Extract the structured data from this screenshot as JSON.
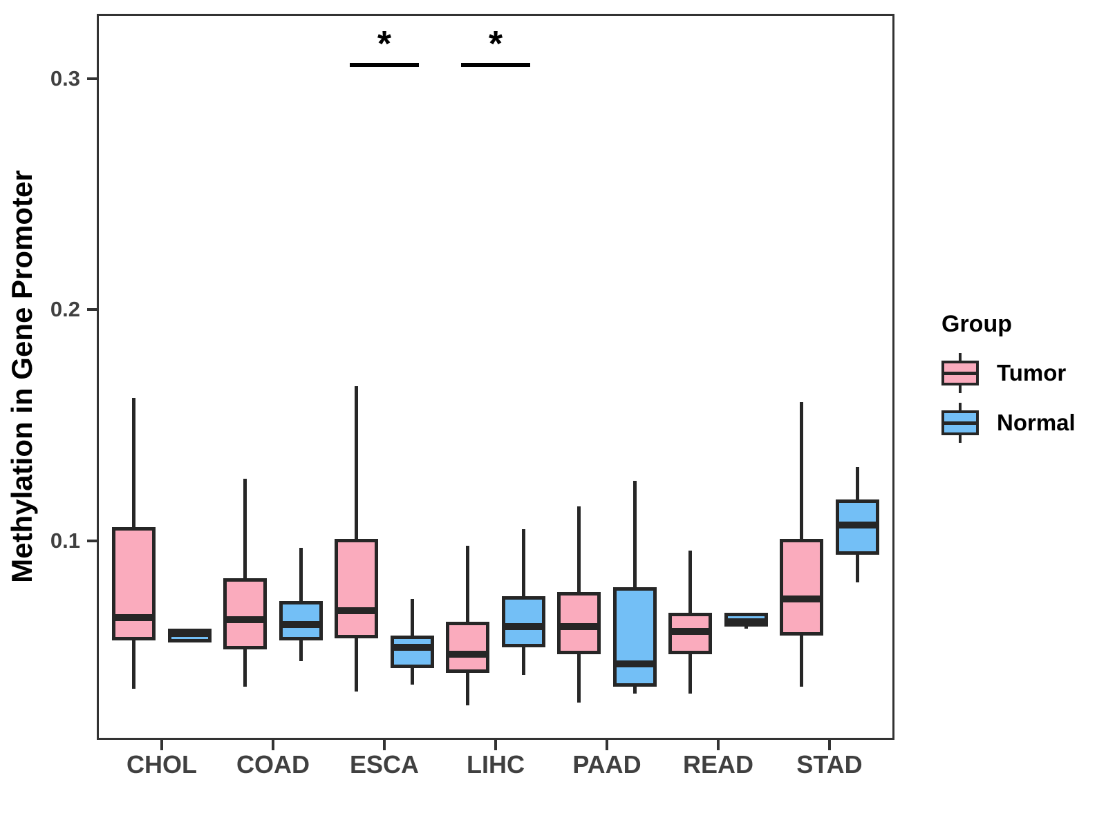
{
  "chart_data": {
    "type": "boxplot",
    "title": "",
    "xlabel": "",
    "ylabel": "Methylation in Gene Promoter",
    "categories": [
      "CHOL",
      "COAD",
      "ESCA",
      "LIHC",
      "PAAD",
      "READ",
      "STAD"
    ],
    "groups": [
      "Tumor",
      "Normal"
    ],
    "colors": {
      "Tumor": "#FAABBD",
      "Normal": "#73BFF6"
    },
    "ylim": [
      0.014,
      0.328
    ],
    "yticks": [
      0.1,
      0.2,
      0.3
    ],
    "grid": "off",
    "series": [
      {
        "category": "CHOL",
        "group": "Tumor",
        "min": 0.036,
        "q1": 0.057,
        "median": 0.067,
        "q3": 0.106,
        "max": 0.162
      },
      {
        "category": "CHOL",
        "group": "Normal",
        "min": 0.056,
        "q1": 0.056,
        "median": 0.06,
        "q3": 0.062,
        "max": 0.062
      },
      {
        "category": "COAD",
        "group": "Tumor",
        "min": 0.037,
        "q1": 0.053,
        "median": 0.066,
        "q3": 0.084,
        "max": 0.127
      },
      {
        "category": "COAD",
        "group": "Normal",
        "min": 0.048,
        "q1": 0.057,
        "median": 0.064,
        "q3": 0.074,
        "max": 0.097
      },
      {
        "category": "ESCA",
        "group": "Tumor",
        "min": 0.035,
        "q1": 0.058,
        "median": 0.07,
        "q3": 0.101,
        "max": 0.167
      },
      {
        "category": "ESCA",
        "group": "Normal",
        "min": 0.038,
        "q1": 0.045,
        "median": 0.054,
        "q3": 0.059,
        "max": 0.075
      },
      {
        "category": "LIHC",
        "group": "Tumor",
        "min": 0.029,
        "q1": 0.043,
        "median": 0.051,
        "q3": 0.065,
        "max": 0.098
      },
      {
        "category": "LIHC",
        "group": "Normal",
        "min": 0.042,
        "q1": 0.054,
        "median": 0.063,
        "q3": 0.076,
        "max": 0.105
      },
      {
        "category": "PAAD",
        "group": "Tumor",
        "min": 0.03,
        "q1": 0.051,
        "median": 0.063,
        "q3": 0.078,
        "max": 0.115
      },
      {
        "category": "PAAD",
        "group": "Normal",
        "min": 0.034,
        "q1": 0.037,
        "median": 0.047,
        "q3": 0.08,
        "max": 0.126
      },
      {
        "category": "READ",
        "group": "Tumor",
        "min": 0.034,
        "q1": 0.051,
        "median": 0.061,
        "q3": 0.069,
        "max": 0.096
      },
      {
        "category": "READ",
        "group": "Normal",
        "min": 0.062,
        "q1": 0.063,
        "median": 0.065,
        "q3": 0.069,
        "max": 0.069
      },
      {
        "category": "STAD",
        "group": "Tumor",
        "min": 0.037,
        "q1": 0.059,
        "median": 0.075,
        "q3": 0.101,
        "max": 0.16
      },
      {
        "category": "STAD",
        "group": "Normal",
        "min": 0.082,
        "q1": 0.094,
        "median": 0.107,
        "q3": 0.118,
        "max": 0.132
      }
    ],
    "annotations": [
      {
        "category": "ESCA",
        "label": "*",
        "bar_value": 0.306
      },
      {
        "category": "LIHC",
        "label": "*",
        "bar_value": 0.306
      }
    ],
    "legend": {
      "title": "Group",
      "position": "right",
      "entries": [
        {
          "label": "Tumor"
        },
        {
          "label": "Normal"
        }
      ]
    }
  }
}
